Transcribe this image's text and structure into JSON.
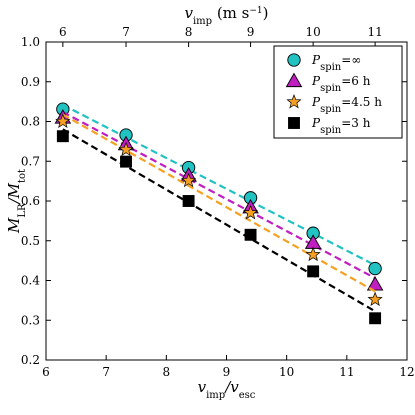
{
  "chart_data": {
    "type": "scatter",
    "xlabel": "v_imp / v_esc",
    "ylabel": "M_LR / M_tot",
    "top_xlabel": "v_imp (m s^-1)",
    "xlim": [
      6,
      12
    ],
    "ylim": [
      0.2,
      1.0
    ],
    "xticks": [
      6,
      7,
      8,
      9,
      10,
      11,
      12
    ],
    "xtick_labels": [
      "6",
      "7",
      "8",
      "9",
      "10",
      "11",
      "12"
    ],
    "yticks": [
      0.2,
      0.3,
      0.4,
      0.5,
      0.6,
      0.7,
      0.8,
      0.9,
      1.0
    ],
    "ytick_labels": [
      "0.2",
      "0.3",
      "0.4",
      "0.5",
      "0.6",
      "0.7",
      "0.8",
      "0.9",
      "1.0"
    ],
    "top_ticks": [
      6,
      7,
      8,
      9,
      10,
      11
    ],
    "top_tick_labels": [
      "6",
      "7",
      "8",
      "9",
      "10",
      "11"
    ],
    "top_tick_positions": [
      6.28,
      7.33,
      8.37,
      9.4,
      10.44,
      11.47
    ],
    "legend_position": "top-right",
    "x": [
      6.28,
      7.33,
      8.37,
      9.4,
      10.44,
      11.47
    ],
    "series": [
      {
        "name": "P_spin = ∞",
        "marker": "circle",
        "color": "#20c2c2",
        "values": [
          0.831,
          0.766,
          0.684,
          0.608,
          0.519,
          0.43
        ]
      },
      {
        "name": "P_spin = 6 h",
        "marker": "triangle",
        "color": "#c01ec0",
        "values": [
          0.81,
          0.743,
          0.664,
          0.584,
          0.495,
          0.39
        ]
      },
      {
        "name": "P_spin = 4.5 h",
        "marker": "star",
        "color": "#f5a020",
        "values": [
          0.8,
          0.729,
          0.651,
          0.57,
          0.465,
          0.352
        ]
      },
      {
        "name": "P_spin = 3 h",
        "marker": "square",
        "color": "#000000",
        "values": [
          0.763,
          0.699,
          0.6,
          0.515,
          0.423,
          0.305
        ]
      }
    ]
  }
}
